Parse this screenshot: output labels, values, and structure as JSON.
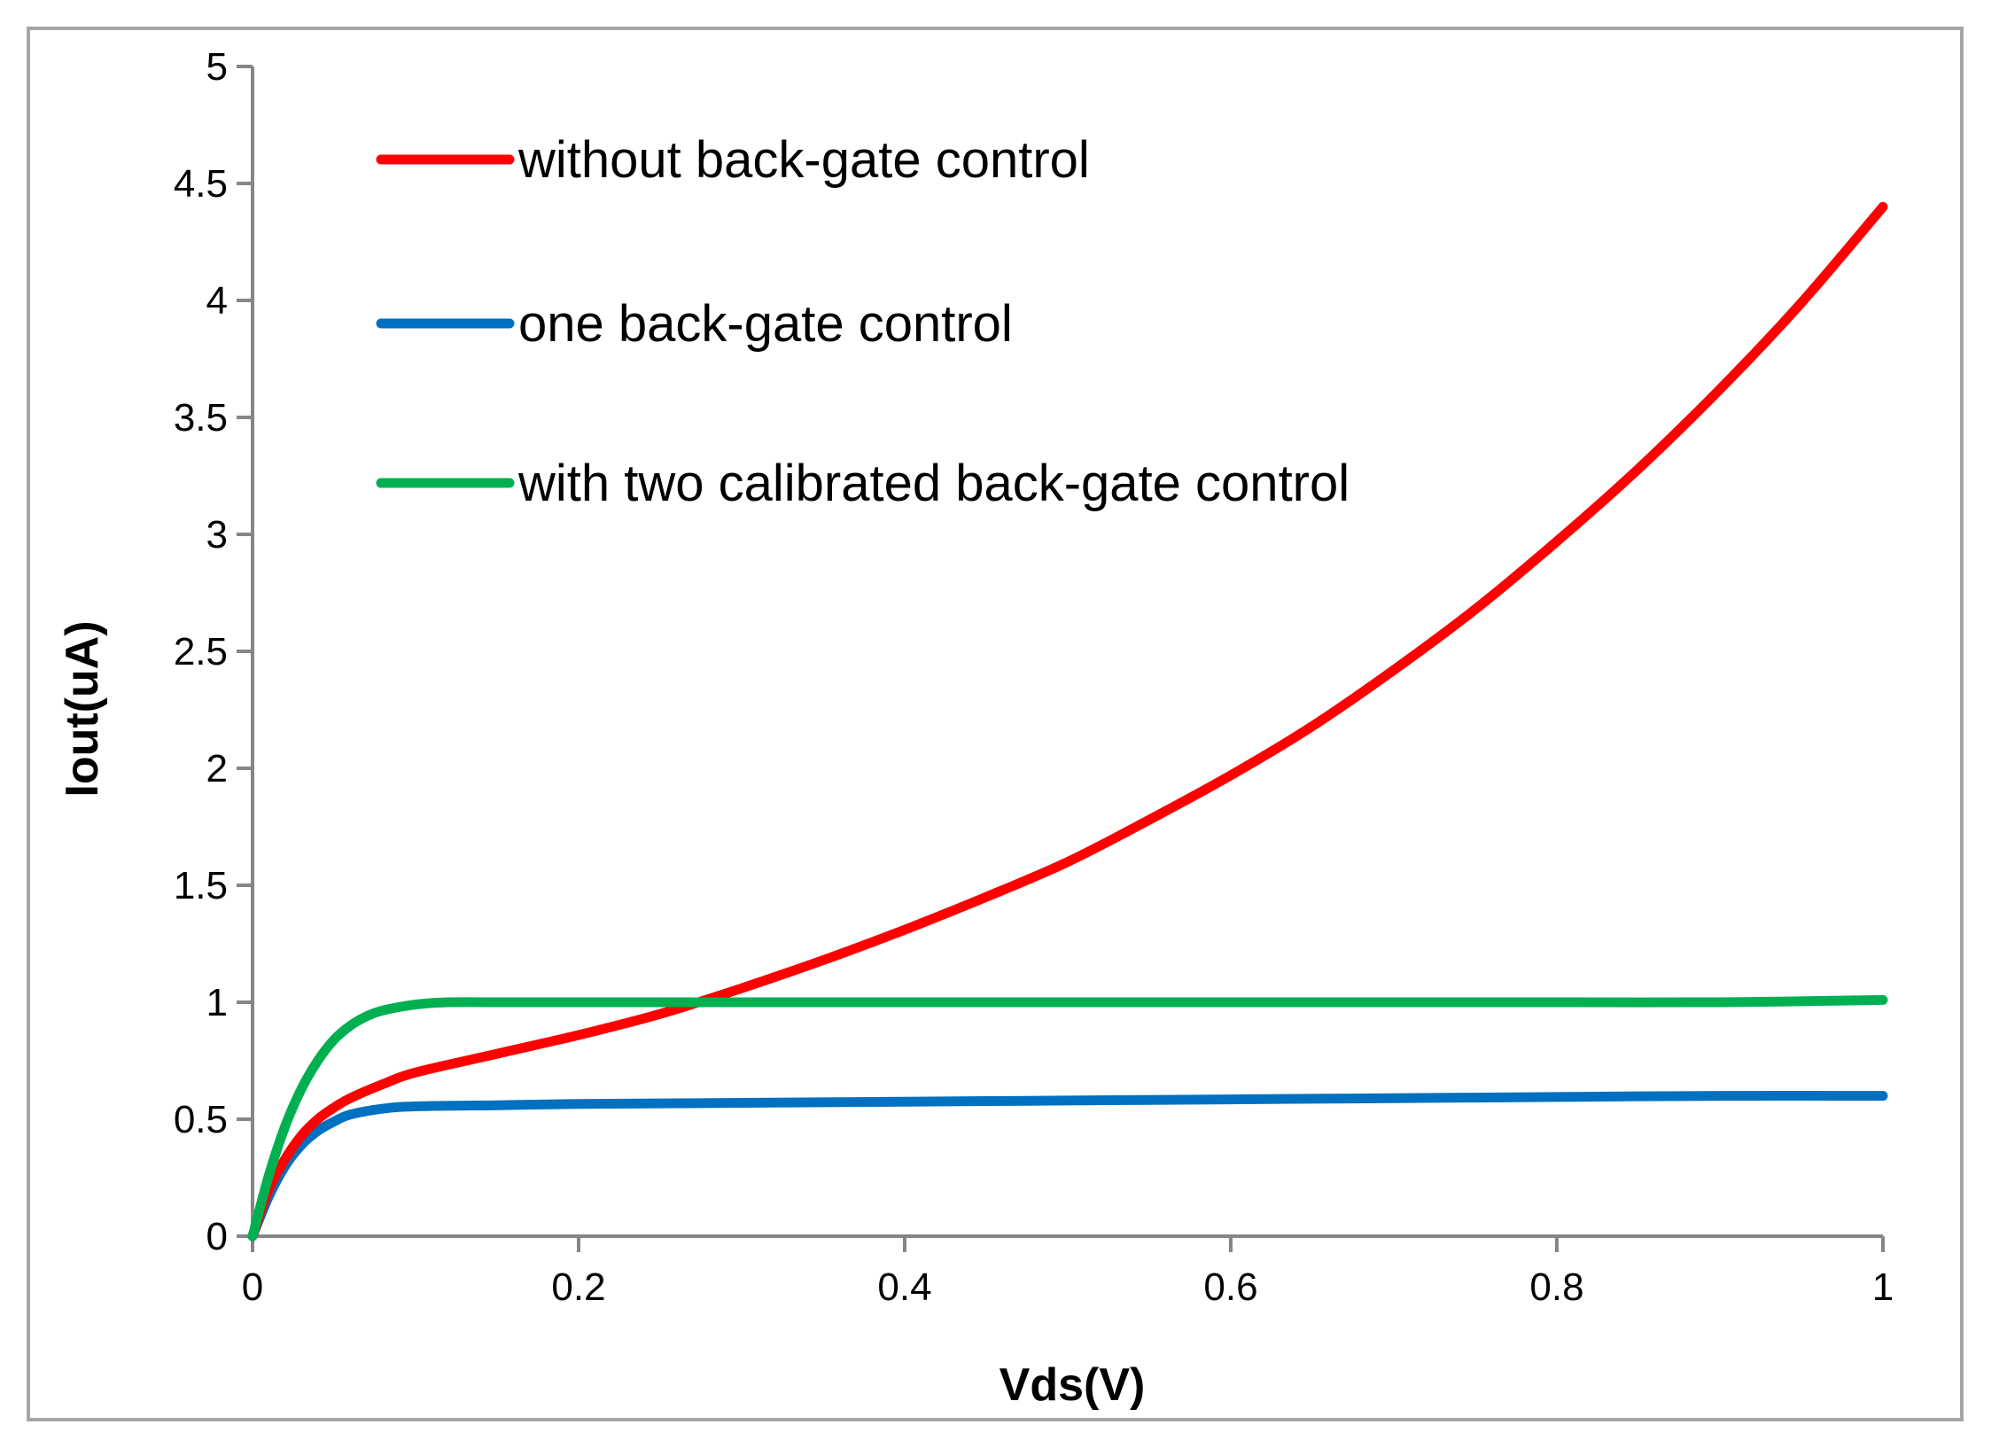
{
  "chart_data": {
    "type": "line",
    "title": "",
    "xlabel": "Vds(V)",
    "ylabel": "Iout(uA)",
    "xlim": [
      0,
      1
    ],
    "ylim": [
      0,
      5
    ],
    "x_ticks": [
      0,
      0.2,
      0.4,
      0.6,
      0.8,
      1
    ],
    "x_tick_labels": [
      "0",
      "0.2",
      "0.4",
      "0.6",
      "0.8",
      "1"
    ],
    "y_ticks": [
      0,
      0.5,
      1,
      1.5,
      2,
      2.5,
      3,
      3.5,
      4,
      4.5,
      5
    ],
    "y_tick_labels": [
      "0",
      "0.5",
      "1",
      "1.5",
      "2",
      "2.5",
      "3",
      "3.5",
      "4",
      "4.5",
      "5"
    ],
    "grid": false,
    "legend_position": "top-left",
    "series": [
      {
        "name": "without back-gate control",
        "color": "#ff0000",
        "x": [
          0,
          0.01,
          0.02,
          0.03,
          0.04,
          0.05,
          0.06,
          0.08,
          0.1,
          0.15,
          0.2,
          0.25,
          0.3,
          0.35,
          0.4,
          0.45,
          0.5,
          0.55,
          0.6,
          0.65,
          0.7,
          0.75,
          0.8,
          0.85,
          0.9,
          0.95,
          1.0
        ],
        "y": [
          0,
          0.2,
          0.33,
          0.43,
          0.5,
          0.55,
          0.59,
          0.65,
          0.7,
          0.78,
          0.86,
          0.95,
          1.06,
          1.18,
          1.31,
          1.45,
          1.6,
          1.78,
          1.97,
          2.18,
          2.42,
          2.68,
          2.97,
          3.28,
          3.62,
          3.99,
          4.4
        ]
      },
      {
        "name": "one back-gate control",
        "color": "#0070c0",
        "x": [
          0,
          0.01,
          0.02,
          0.03,
          0.04,
          0.05,
          0.06,
          0.08,
          0.1,
          0.15,
          0.2,
          0.3,
          0.4,
          0.5,
          0.6,
          0.7,
          0.8,
          0.9,
          1.0
        ],
        "y": [
          0,
          0.17,
          0.3,
          0.39,
          0.45,
          0.49,
          0.52,
          0.545,
          0.555,
          0.56,
          0.565,
          0.57,
          0.575,
          0.58,
          0.585,
          0.59,
          0.595,
          0.6,
          0.6
        ]
      },
      {
        "name": "with two calibrated back-gate control",
        "color": "#00b050",
        "x": [
          0,
          0.01,
          0.02,
          0.03,
          0.04,
          0.05,
          0.06,
          0.07,
          0.08,
          0.1,
          0.12,
          0.15,
          0.2,
          0.3,
          0.4,
          0.5,
          0.6,
          0.7,
          0.8,
          0.9,
          1.0
        ],
        "y": [
          0,
          0.26,
          0.47,
          0.63,
          0.75,
          0.84,
          0.9,
          0.94,
          0.965,
          0.99,
          1.0,
          1.0,
          1.0,
          1.0,
          1.0,
          1.0,
          1.0,
          1.0,
          1.0,
          1.0,
          1.01
        ]
      }
    ]
  }
}
